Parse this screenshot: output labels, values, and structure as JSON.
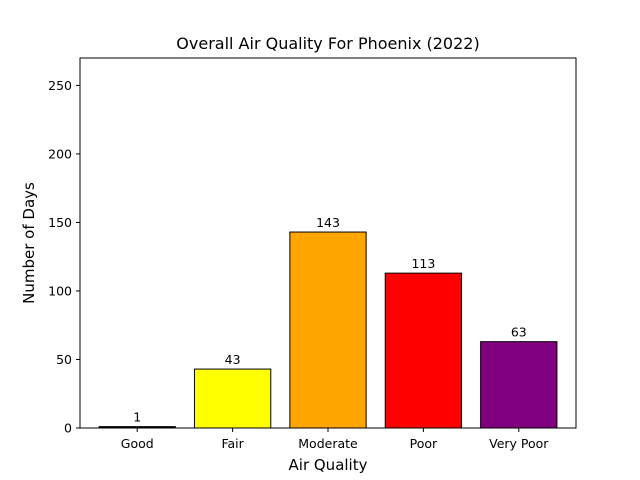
{
  "chart_data": {
    "type": "bar",
    "title": "Overall Air Quality For Phoenix (2022)",
    "xlabel": "Air Quality",
    "ylabel": "Number of Days",
    "categories": [
      "Good",
      "Fair",
      "Moderate",
      "Poor",
      "Very Poor"
    ],
    "values": [
      1,
      43,
      143,
      113,
      63
    ],
    "data_labels": [
      "1",
      "43",
      "143",
      "113",
      "63"
    ],
    "colors": [
      "#000000",
      "#ffff00",
      "#ffa500",
      "#ff0000",
      "#800080"
    ],
    "edge_color": "#000000",
    "ylim": [
      0,
      270
    ],
    "yticks": [
      0,
      50,
      100,
      150,
      200,
      250
    ],
    "grid": false,
    "legend": false
  }
}
